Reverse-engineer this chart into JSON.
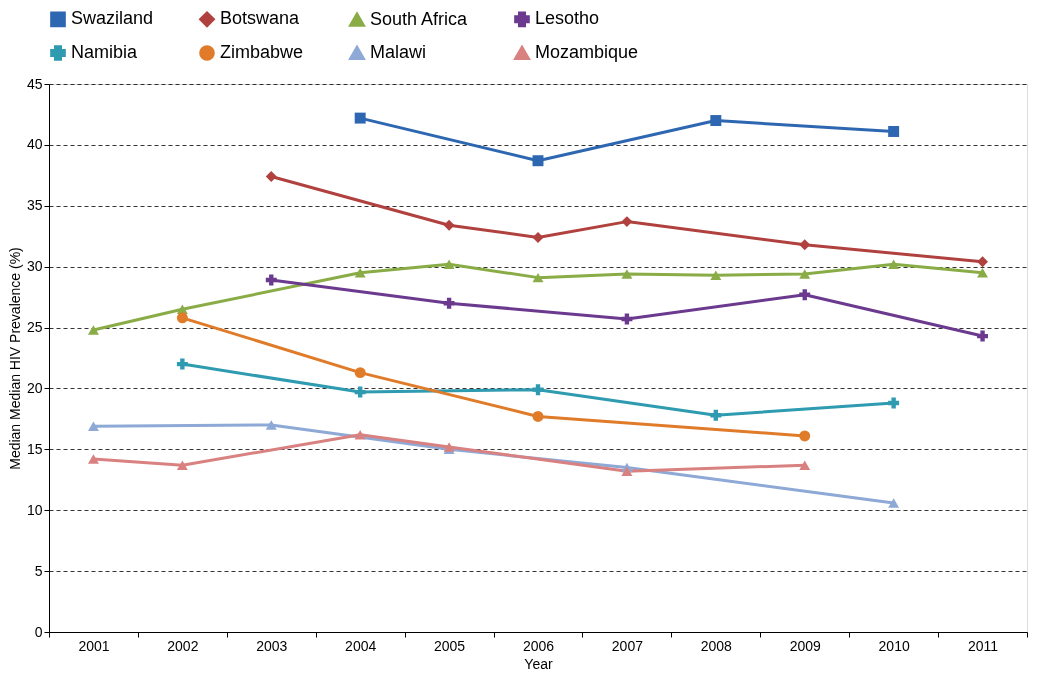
{
  "chart_data": {
    "type": "line",
    "xlabel": "Year",
    "ylabel": "Median Median HIV Prevalence (%)",
    "categories": [
      "2001",
      "2002",
      "2003",
      "2004",
      "2005",
      "2006",
      "2007",
      "2008",
      "2009",
      "2010",
      "2011"
    ],
    "ylim": [
      0,
      45
    ],
    "yticks": [
      0,
      5,
      10,
      15,
      20,
      25,
      30,
      35,
      40,
      45
    ],
    "grid": "y",
    "legend": "top",
    "series": [
      {
        "name": "Swaziland",
        "color": "#2e67b1",
        "marker": "square",
        "values": [
          null,
          null,
          null,
          42.2,
          null,
          38.7,
          null,
          42.0,
          null,
          41.1,
          null
        ]
      },
      {
        "name": "Botswana",
        "color": "#b0413e",
        "marker": "diamond",
        "values": [
          null,
          null,
          37.4,
          null,
          33.4,
          32.4,
          33.7,
          null,
          31.8,
          null,
          30.4
        ]
      },
      {
        "name": "South Africa",
        "color": "#8aac46",
        "marker": "triangle",
        "values": [
          24.8,
          26.5,
          null,
          29.5,
          30.2,
          29.1,
          29.4,
          29.3,
          29.4,
          30.2,
          29.5
        ]
      },
      {
        "name": "Lesotho",
        "color": "#6b3a8f",
        "marker": "cross",
        "values": [
          null,
          null,
          28.9,
          null,
          27.0,
          null,
          25.7,
          null,
          27.7,
          null,
          24.3
        ]
      },
      {
        "name": "Namibia",
        "color": "#2e9bb0",
        "marker": "cross",
        "values": [
          null,
          22.0,
          null,
          19.7,
          null,
          19.9,
          null,
          17.8,
          null,
          18.8,
          null
        ]
      },
      {
        "name": "Zimbabwe",
        "color": "#e07b2a",
        "marker": "circle",
        "values": [
          null,
          25.8,
          null,
          21.3,
          null,
          17.7,
          null,
          null,
          16.1,
          null,
          null
        ]
      },
      {
        "name": "Malawi",
        "color": "#8ea9d6",
        "marker": "triangle",
        "values": [
          16.9,
          null,
          17.0,
          null,
          15.0,
          null,
          13.5,
          null,
          null,
          10.6,
          null
        ]
      },
      {
        "name": "Mozambique",
        "color": "#d98080",
        "marker": "triangle",
        "values": [
          14.2,
          13.7,
          null,
          16.2,
          15.2,
          null,
          13.2,
          null,
          13.7,
          null,
          null
        ]
      }
    ]
  }
}
